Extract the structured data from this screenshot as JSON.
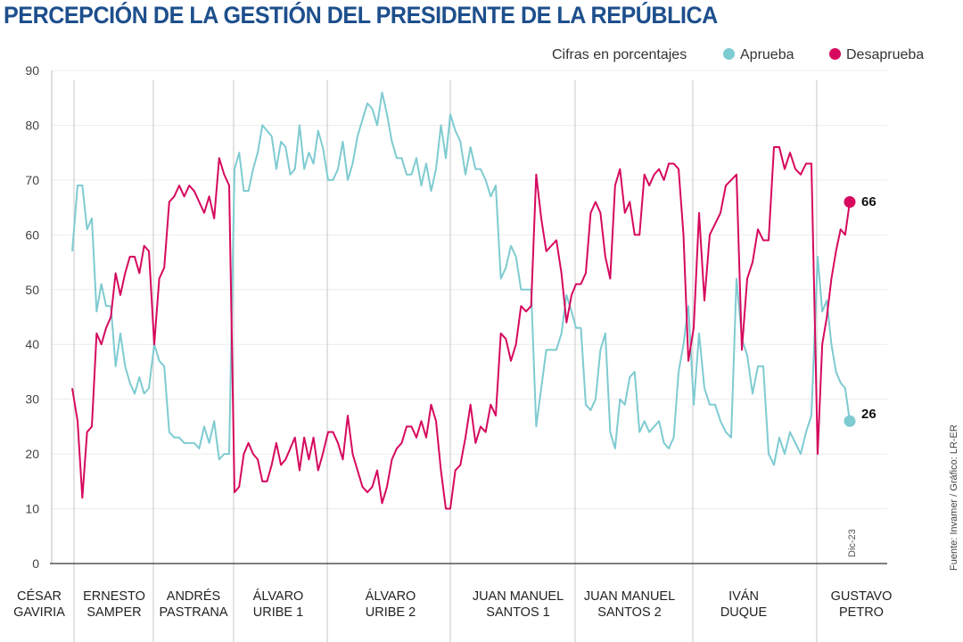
{
  "title": "PERCEPCIÓN DE LA GESTIÓN DEL PRESIDENTE DE LA REPÚBLICA",
  "source": "Fuente: Invamer / Gráfico: LR-ER",
  "chart_data": {
    "type": "line",
    "title": "PERCEPCIÓN DE LA GESTIÓN DEL PRESIDENTE DE LA REPÚBLICA",
    "note": "Cifras en porcentajes",
    "ylim": [
      0,
      90
    ],
    "yticks": [
      "0",
      "10",
      "20",
      "30",
      "40",
      "50",
      "60",
      "70",
      "80",
      "90"
    ],
    "grid": true,
    "legend_position": "top-right",
    "last_label": "Dic-23",
    "colors": {
      "aprueba": "#7ecbd1",
      "desaprueba": "#d6095e"
    },
    "series_names": {
      "aprueba": "Aprueba",
      "desaprueba": "Desaprueba"
    },
    "end_values": {
      "aprueba": "26",
      "desaprueba": "66"
    },
    "periods": [
      {
        "label": [
          "CÉSAR",
          "GAVIRIA"
        ],
        "aprueba": [
          57
        ],
        "desaprueba": [
          32
        ]
      },
      {
        "label": [
          "ERNESTO",
          "SAMPER"
        ],
        "aprueba": [
          69,
          69,
          61,
          63,
          46,
          51,
          47,
          47,
          36,
          42,
          36,
          33,
          31,
          34,
          31,
          32
        ],
        "desaprueba": [
          26,
          12,
          24,
          25,
          42,
          40,
          43,
          45,
          53,
          49,
          53,
          56,
          56,
          53,
          58,
          57
        ]
      },
      {
        "label": [
          "ANDRÉS",
          "PASTRANA"
        ],
        "aprueba": [
          40,
          37,
          36,
          24,
          23,
          23,
          22,
          22,
          22,
          21,
          25,
          22,
          26,
          19,
          20,
          20
        ],
        "desaprueba": [
          40,
          52,
          54,
          66,
          67,
          69,
          67,
          69,
          68,
          66,
          64,
          67,
          63,
          74,
          71,
          69
        ]
      },
      {
        "label": [
          "ÁLVARO",
          "URIBE 1"
        ],
        "aprueba": [
          72,
          75,
          68,
          68,
          72,
          75,
          80,
          79,
          78,
          72,
          77,
          76,
          71,
          72,
          80,
          72,
          75,
          73,
          79,
          76
        ],
        "desaprueba": [
          13,
          14,
          20,
          22,
          20,
          19,
          15,
          15,
          18,
          22,
          18,
          19,
          21,
          23,
          17,
          23,
          19,
          23,
          17,
          20
        ]
      },
      {
        "label": [
          "ÁLVARO",
          "URIBE 2"
        ],
        "aprueba": [
          70,
          70,
          72,
          77,
          70,
          73,
          78,
          81,
          84,
          83,
          80,
          86,
          82,
          77,
          74,
          74,
          71,
          71,
          74,
          69,
          73,
          68,
          72,
          80,
          74
        ],
        "desaprueba": [
          24,
          24,
          22,
          19,
          27,
          20,
          17,
          14,
          13,
          14,
          17,
          11,
          14,
          19,
          21,
          22,
          25,
          25,
          23,
          26,
          23,
          29,
          26,
          17,
          10
        ]
      },
      {
        "label": [
          "JUAN MANUEL",
          "SANTOS 1"
        ],
        "aprueba": [
          82,
          79,
          77,
          71,
          76,
          72,
          72,
          70,
          67,
          69,
          52,
          54,
          58,
          56,
          50,
          50,
          50,
          25,
          32,
          39,
          39,
          39,
          42,
          49,
          46
        ],
        "desaprueba": [
          10,
          17,
          18,
          23,
          29,
          22,
          25,
          24,
          29,
          27,
          42,
          41,
          37,
          40,
          47,
          46,
          47,
          71,
          63,
          57,
          58,
          59,
          53,
          44,
          49
        ]
      },
      {
        "label": [
          "JUAN MANUEL",
          "SANTOS 2"
        ],
        "aprueba": [
          43,
          43,
          29,
          28,
          30,
          39,
          42,
          24,
          21,
          30,
          29,
          34,
          35,
          24,
          26,
          24,
          25,
          26,
          22,
          21,
          23,
          35,
          40,
          47
        ],
        "desaprueba": [
          51,
          51,
          53,
          64,
          66,
          64,
          56,
          52,
          69,
          72,
          64,
          66,
          60,
          60,
          71,
          69,
          71,
          72,
          70,
          73,
          73,
          72,
          60,
          37
        ]
      },
      {
        "label": [
          "IVÁN",
          "DUQUE"
        ],
        "aprueba": [
          29,
          42,
          32,
          29,
          29,
          26,
          24,
          23,
          52,
          41,
          38,
          31,
          36,
          36,
          20,
          18,
          23,
          20,
          24,
          22,
          20,
          24,
          27
        ],
        "desaprueba": [
          43,
          64,
          48,
          60,
          62,
          64,
          69,
          70,
          71,
          39,
          52,
          55,
          61,
          59,
          59,
          76,
          76,
          72,
          75,
          72,
          71,
          73,
          73
        ]
      },
      {
        "label": [
          "GUSTAVO",
          "PETRO"
        ],
        "aprueba": [
          56,
          46,
          48,
          40,
          35,
          33,
          32,
          26
        ],
        "desaprueba": [
          20,
          40,
          45,
          52,
          57,
          61,
          60,
          66
        ]
      }
    ]
  }
}
